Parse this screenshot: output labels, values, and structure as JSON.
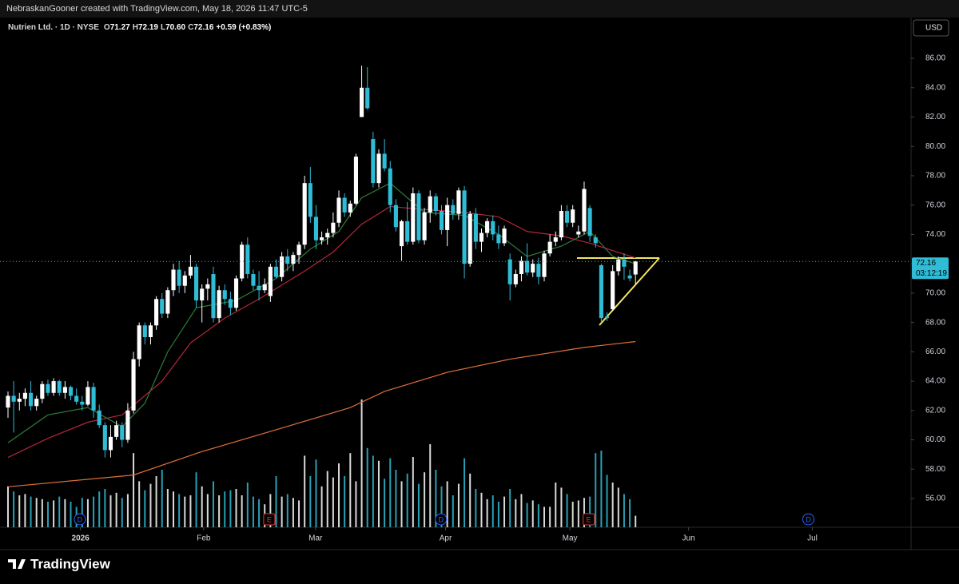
{
  "header": {
    "credit": "NebraskanGooner created with TradingView.com, May 18, 2026 11:47 UTC-5"
  },
  "legend": {
    "symbol": "Nutrien Ltd. · 1D · NYSE",
    "ohlc": [
      {
        "prefix": "O",
        "value": 71.27
      },
      {
        "prefix": "H",
        "value": 72.19
      },
      {
        "prefix": "L",
        "value": 70.6,
        "label": "70.60"
      },
      {
        "prefix": "C",
        "value": 72.16
      }
    ],
    "change": "+0.59 (+0.83%)"
  },
  "currency": "USD",
  "brand": "TradingView",
  "chart_data": {
    "type": "candlestick",
    "up_color": "#ffffff",
    "down_color": "#2fbcd6",
    "xlim": [
      -1.4,
      158.3
    ],
    "ylim": [
      54.04,
      88.78
    ],
    "xticks": [
      {
        "value": 12.7,
        "label": "2026"
      },
      {
        "value": 34.3,
        "label": "Feb"
      },
      {
        "value": 53.9,
        "label": "Mar"
      },
      {
        "value": 76.7,
        "label": "Apr"
      },
      {
        "value": 98.5,
        "label": "May"
      },
      {
        "value": 119.3,
        "label": "Jun"
      },
      {
        "value": 141.0,
        "label": "Jul"
      }
    ],
    "yticks": [
      {
        "value": 56,
        "label": "56.00"
      },
      {
        "value": 58,
        "label": "58.00"
      },
      {
        "value": 60,
        "label": "60.00"
      },
      {
        "value": 62,
        "label": "62.00"
      },
      {
        "value": 64,
        "label": "64.00"
      },
      {
        "value": 66,
        "label": "66.00"
      },
      {
        "value": 68,
        "label": "68.00"
      },
      {
        "value": 70,
        "label": "70.00"
      },
      {
        "value": 72,
        "label": "72.00"
      },
      {
        "value": 74,
        "label": "74.00"
      },
      {
        "value": 76,
        "label": "76.00"
      },
      {
        "value": 78,
        "label": "78.00"
      },
      {
        "value": 80,
        "label": "80.00"
      },
      {
        "value": 82,
        "label": "82.00"
      },
      {
        "value": 84,
        "label": "84.00"
      },
      {
        "value": 86,
        "label": "86.00"
      }
    ],
    "open": [
      62.2,
      63.0,
      62.6,
      62.8,
      63.2,
      62.3,
      62.8,
      63.8,
      63.2,
      64.0,
      63.2,
      63.6,
      63.0,
      62.6,
      62.4,
      63.6,
      62.0,
      61.0,
      59.3,
      60.2,
      61.0,
      60.0,
      62.0,
      65.5,
      67.8,
      67.0,
      67.8,
      69.6,
      68.6,
      70.2,
      71.6,
      70.5,
      71.2,
      71.8,
      69.5,
      70.3,
      71.3,
      68.3,
      70.2,
      69.6,
      69.0,
      71.0,
      73.3,
      71.3,
      70.5,
      70.2,
      69.8,
      71.8,
      71.1,
      72.5,
      72.0,
      72.6,
      73.3,
      77.5,
      75.2,
      73.6,
      73.8,
      74.1,
      74.8,
      76.5,
      75.5,
      76.1,
      82.0,
      84.0,
      80.5,
      77.5,
      79.5,
      78.5,
      76.0,
      73.2,
      74.9,
      73.5,
      76.8,
      73.6,
      75.5,
      76.6,
      75.6,
      74.3,
      76.0,
      75.4,
      77.0,
      72.0,
      75.4,
      73.5,
      74.1,
      74.9,
      74.0,
      73.4,
      72.3,
      70.6,
      71.3,
      72.2,
      71.4,
      72.0,
      71.1,
      72.7,
      73.5,
      73.8,
      75.6,
      74.8,
      74.0,
      74.2,
      75.8,
      73.8,
      71.9,
      68.4,
      68.9,
      71.5,
      72.3,
      71.2,
      71.27
    ],
    "high": [
      63.3,
      64.0,
      63.2,
      63.5,
      64.0,
      63.0,
      64.0,
      64.1,
      64.2,
      64.1,
      64.0,
      63.7,
      63.5,
      63.0,
      64.0,
      63.9,
      62.4,
      61.2,
      61.0,
      61.3,
      61.2,
      62.5,
      66.0,
      68.0,
      68.0,
      68.0,
      69.8,
      70.0,
      70.4,
      72.0,
      72.2,
      71.5,
      72.6,
      72.0,
      70.6,
      71.0,
      71.8,
      70.5,
      70.6,
      70.1,
      71.2,
      73.5,
      73.8,
      71.6,
      71.5,
      71.0,
      72.0,
      72.3,
      72.8,
      73.0,
      72.8,
      73.5,
      78.0,
      78.6,
      76.0,
      74.2,
      74.4,
      75.5,
      77.0,
      76.8,
      76.3,
      79.5,
      85.5,
      85.4,
      81.0,
      79.8,
      80.5,
      79.0,
      76.4,
      75.0,
      76.2,
      77.2,
      77.0,
      75.8,
      77.0,
      76.8,
      76.0,
      76.5,
      76.4,
      77.2,
      77.3,
      75.6,
      75.8,
      74.4,
      75.1,
      75.3,
      74.6,
      74.6,
      72.7,
      71.6,
      72.5,
      73.4,
      72.3,
      72.4,
      72.9,
      74.0,
      74.2,
      76.0,
      76.0,
      76.0,
      74.6,
      77.6,
      76.0,
      74.0,
      72.0,
      68.7,
      71.9,
      72.5,
      72.7,
      71.6,
      72.19
    ],
    "low": [
      61.5,
      60.5,
      62.0,
      62.3,
      62.0,
      62.0,
      62.5,
      63.0,
      63.0,
      63.0,
      62.8,
      62.7,
      62.4,
      62.0,
      62.3,
      61.5,
      60.8,
      58.8,
      58.8,
      60.0,
      59.5,
      59.8,
      61.8,
      65.0,
      66.5,
      66.5,
      67.5,
      68.3,
      68.3,
      69.8,
      70.0,
      70.0,
      71.0,
      69.0,
      68.0,
      69.5,
      68.0,
      68.0,
      69.2,
      68.5,
      68.8,
      70.8,
      71.0,
      70.2,
      69.5,
      70.0,
      69.4,
      71.0,
      70.8,
      71.5,
      71.5,
      72.0,
      73.0,
      74.8,
      73.0,
      73.3,
      73.3,
      73.8,
      74.5,
      75.2,
      75.2,
      76.0,
      82.0,
      82.5,
      77.2,
      77.2,
      78.3,
      75.5,
      74.2,
      72.2,
      73.3,
      73.3,
      73.4,
      73.3,
      74.8,
      75.3,
      74.0,
      73.2,
      75.0,
      75.0,
      71.0,
      71.8,
      73.0,
      72.8,
      73.8,
      73.6,
      73.0,
      73.2,
      69.5,
      70.4,
      70.8,
      71.2,
      71.1,
      70.6,
      70.8,
      72.5,
      73.2,
      73.6,
      74.5,
      74.5,
      73.8,
      74.0,
      73.5,
      73.1,
      68.0,
      68.1,
      68.8,
      71.2,
      70.9,
      70.8,
      70.6
    ],
    "close": [
      63.0,
      62.6,
      62.8,
      63.2,
      62.3,
      62.8,
      63.8,
      63.2,
      64.0,
      63.2,
      63.6,
      63.0,
      62.6,
      62.4,
      63.6,
      62.0,
      61.0,
      59.3,
      60.2,
      61.0,
      60.0,
      62.0,
      65.5,
      67.8,
      67.0,
      67.8,
      69.6,
      68.6,
      70.2,
      71.6,
      70.5,
      71.2,
      71.8,
      69.5,
      70.3,
      70.6,
      68.3,
      70.2,
      69.6,
      69.0,
      71.0,
      73.3,
      71.3,
      70.5,
      70.2,
      70.6,
      71.8,
      71.1,
      72.5,
      72.0,
      72.6,
      73.3,
      77.5,
      75.2,
      73.6,
      73.8,
      74.1,
      74.8,
      76.5,
      75.5,
      76.1,
      79.3,
      84.0,
      82.6,
      77.5,
      79.5,
      78.5,
      76.0,
      74.5,
      74.9,
      73.5,
      76.8,
      73.6,
      75.5,
      76.6,
      75.6,
      74.3,
      76.0,
      75.4,
      77.0,
      72.0,
      75.4,
      73.5,
      74.1,
      74.9,
      74.0,
      73.4,
      74.4,
      70.6,
      71.3,
      72.2,
      71.4,
      72.0,
      71.1,
      72.7,
      73.5,
      73.8,
      75.6,
      74.8,
      75.7,
      74.2,
      77.1,
      73.9,
      73.4,
      68.3,
      68.3,
      71.5,
      72.3,
      71.8,
      71.0,
      72.16
    ],
    "volume": [
      3.2,
      2.8,
      2.5,
      2.6,
      2.4,
      2.3,
      2.2,
      2.0,
      2.1,
      2.4,
      2.2,
      2.0,
      1.6,
      2.3,
      2.2,
      2.4,
      2.8,
      3.0,
      2.5,
      2.7,
      2.3,
      2.6,
      5.8,
      3.6,
      2.9,
      3.4,
      4.0,
      4.5,
      3.0,
      2.8,
      2.6,
      2.4,
      2.5,
      4.3,
      3.2,
      2.6,
      3.6,
      2.5,
      2.8,
      2.9,
      3.0,
      2.5,
      3.5,
      2.4,
      2.2,
      1.8,
      2.6,
      4.0,
      2.4,
      2.6,
      2.3,
      2.1,
      5.6,
      4.0,
      5.3,
      3.2,
      4.4,
      3.9,
      5.0,
      4.0,
      5.8,
      3.6,
      10.0,
      6.2,
      5.6,
      5.2,
      3.8,
      5.4,
      4.5,
      3.6,
      4.2,
      5.5,
      3.4,
      4.3,
      6.5,
      4.5,
      3.2,
      3.6,
      2.5,
      3.4,
      5.4,
      4.2,
      3.0,
      2.7,
      2.2,
      2.5,
      2.0,
      2.4,
      3.0,
      2.2,
      2.6,
      1.9,
      2.1,
      1.8,
      1.6,
      1.6,
      3.5,
      3.1,
      2.6,
      2.0,
      2.1,
      2.3,
      2.4,
      5.8,
      6.0,
      4.1,
      3.5,
      3.1,
      2.6,
      2.2,
      0.9
    ],
    "lines": [
      {
        "color": "#e0703a",
        "x": [
          0,
          22,
          34,
          48,
          60,
          66,
          77,
          88,
          101,
          110
        ],
        "values": [
          56.8,
          57.6,
          59.2,
          60.8,
          62.2,
          63.3,
          64.6,
          65.5,
          66.3,
          66.7
        ]
      },
      {
        "color": "#b3263a",
        "x": [
          0,
          7,
          14,
          20,
          27,
          32,
          38,
          44,
          52,
          57,
          62,
          67,
          73,
          80,
          86,
          91,
          97,
          102,
          110
        ],
        "values": [
          58.8,
          60.1,
          61.2,
          61.7,
          64.0,
          66.6,
          68.3,
          69.6,
          71.5,
          72.8,
          74.7,
          75.9,
          75.7,
          75.5,
          75.2,
          74.2,
          73.9,
          73.4,
          72.4
        ]
      },
      {
        "color": "#2f7d3a",
        "x": [
          0,
          7,
          14,
          20,
          24,
          28,
          33,
          40,
          47,
          53,
          58,
          62,
          67,
          73,
          80,
          86,
          91,
          97,
          102,
          106,
          110
        ],
        "values": [
          59.8,
          61.7,
          62.2,
          60.9,
          62.5,
          66.0,
          69.0,
          69.5,
          71.0,
          73.0,
          74.2,
          76.5,
          77.5,
          75.5,
          75.3,
          74.0,
          72.5,
          73.2,
          74.2,
          72.5,
          72.0
        ]
      }
    ],
    "last_price": 72.16,
    "countdown": "03:12:19",
    "events": [
      {
        "x": 12.6,
        "label": "D",
        "color": "#2962ff"
      },
      {
        "x": 45.8,
        "label": "E",
        "color": "#e53935"
      },
      {
        "x": 75.9,
        "label": "D",
        "color": "#2962ff"
      },
      {
        "x": 101.8,
        "label": "E",
        "color": "#e53935"
      },
      {
        "x": 140.3,
        "label": "D",
        "color": "#2962ff"
      }
    ]
  }
}
